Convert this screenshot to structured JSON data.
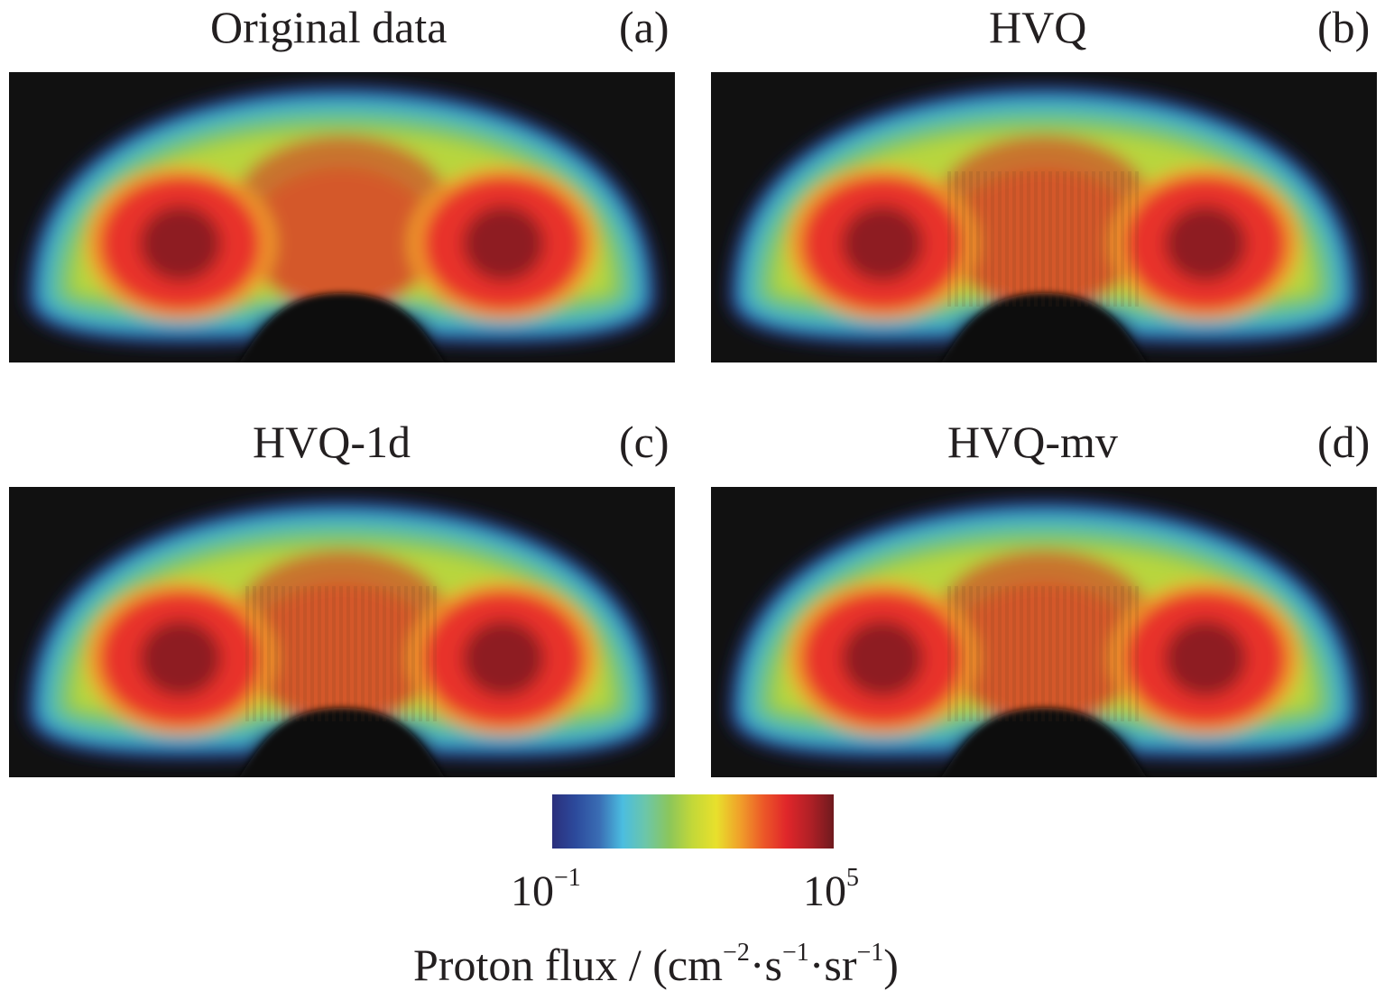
{
  "panels": [
    {
      "title": "Original data",
      "letter": "(a)"
    },
    {
      "title": "HVQ",
      "letter": "(b)"
    },
    {
      "title": "HVQ-1d",
      "letter": "(c)"
    },
    {
      "title": "HVQ-mv",
      "letter": "(d)"
    }
  ],
  "colorbar": {
    "min_base": "10",
    "min_exp": "−1",
    "max_base": "10",
    "max_exp": "5",
    "label_main": "Proton flux / (cm",
    "label_exp1": "−2",
    "label_mid1": "·s",
    "label_exp2": "−1",
    "label_mid2": "·sr",
    "label_exp3": "−1",
    "label_end": ")",
    "colors": [
      "#2b2f7c",
      "#2c4a9c",
      "#3a6db4",
      "#4bbde0",
      "#6cc6a8",
      "#8cc65a",
      "#c4d838",
      "#e8e02c",
      "#f0a02a",
      "#ec5828",
      "#e0262a",
      "#b02026",
      "#6e1a1e"
    ]
  }
}
